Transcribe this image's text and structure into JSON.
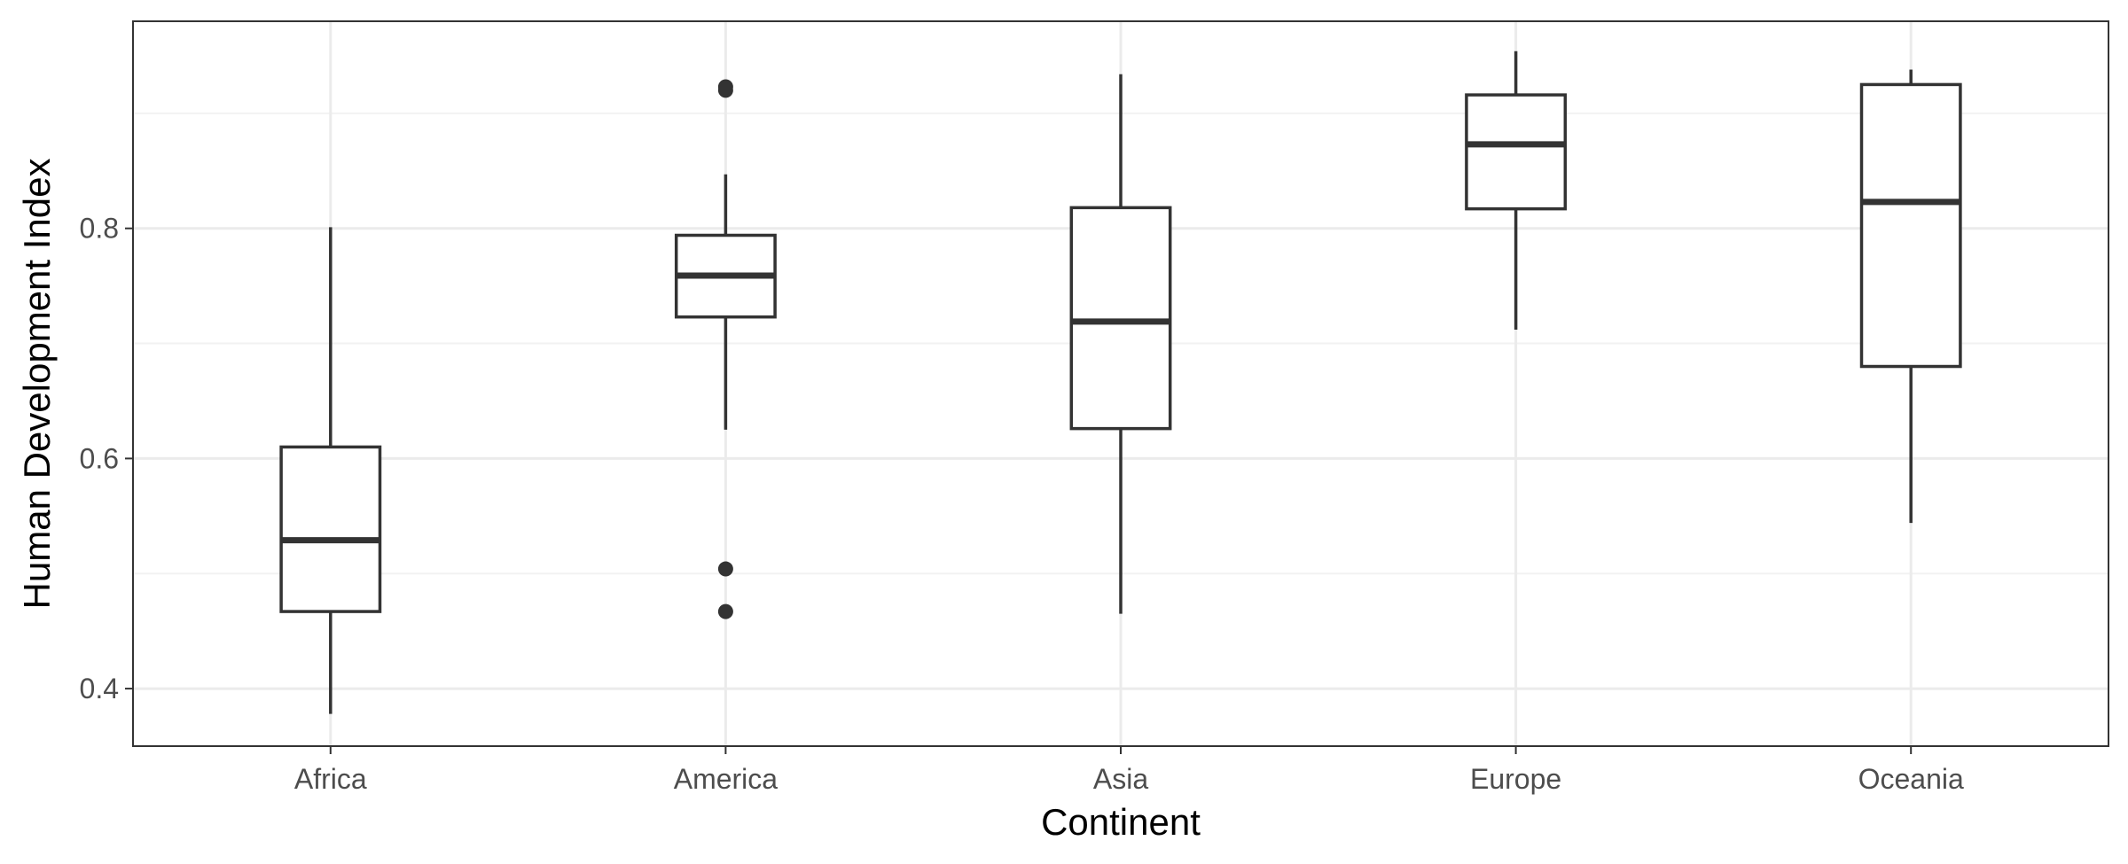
{
  "chart_data": {
    "type": "boxplot",
    "title": "",
    "xlabel": "Continent",
    "ylabel": "Human Development Index",
    "ylim": [
      0.35,
      0.98
    ],
    "yticks": [
      0.4,
      0.6,
      0.8
    ],
    "ytick_labels": [
      "0.4",
      "0.6",
      "0.8"
    ],
    "grid": true,
    "categories": [
      "Africa",
      "America",
      "Asia",
      "Europe",
      "Oceania"
    ],
    "boxes": [
      {
        "category": "Africa",
        "whisker_low": 0.378,
        "q1": 0.467,
        "median": 0.529,
        "q3": 0.61,
        "whisker_high": 0.801,
        "outliers": []
      },
      {
        "category": "America",
        "whisker_low": 0.625,
        "q1": 0.723,
        "median": 0.759,
        "q3": 0.794,
        "whisker_high": 0.847,
        "outliers": [
          0.92,
          0.923,
          0.504,
          0.467
        ]
      },
      {
        "category": "Asia",
        "whisker_low": 0.465,
        "q1": 0.626,
        "median": 0.719,
        "q3": 0.818,
        "whisker_high": 0.934,
        "outliers": []
      },
      {
        "category": "Europe",
        "whisker_low": 0.712,
        "q1": 0.817,
        "median": 0.873,
        "q3": 0.916,
        "whisker_high": 0.954,
        "outliers": []
      },
      {
        "category": "Oceania",
        "whisker_low": 0.544,
        "q1": 0.68,
        "median": 0.823,
        "q3": 0.925,
        "whisker_high": 0.938,
        "outliers": []
      }
    ]
  },
  "colors": {
    "box_stroke": "#333333",
    "grid_major": "#ebebeb",
    "grid_minor": "#f2f2f2",
    "panel_border": "#333333",
    "tick_text": "#4d4d4d"
  }
}
